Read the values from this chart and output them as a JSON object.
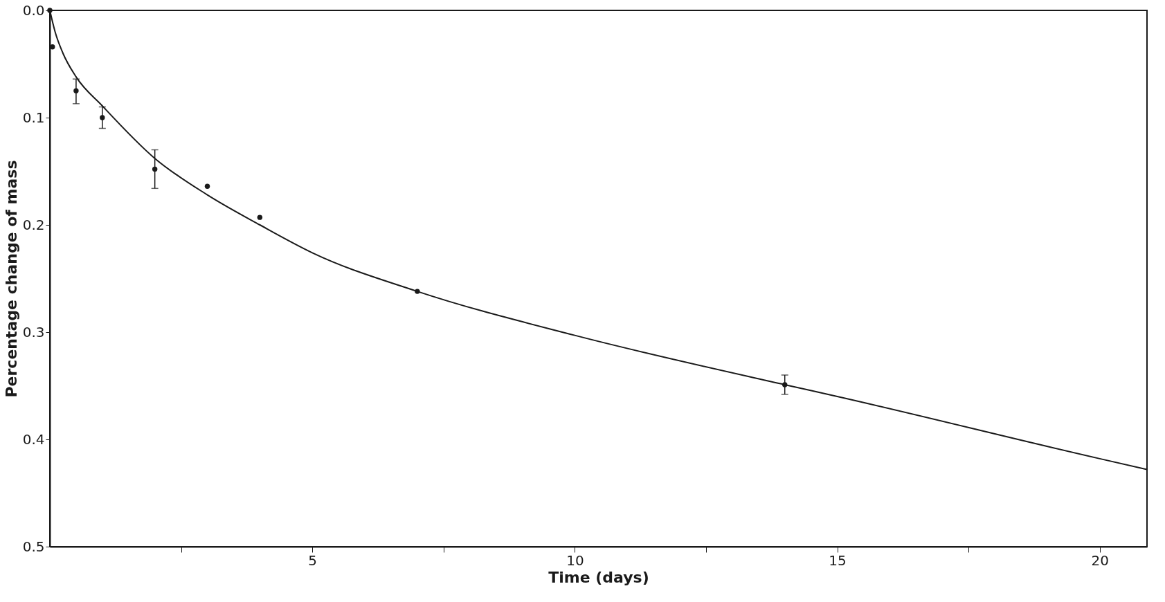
{
  "chart_data": {
    "type": "scatter",
    "xlabel": "Time  (days)",
    "ylabel": "Percentage  change  of  mass",
    "xlim": [
      0,
      20.9
    ],
    "ylim": [
      0.5,
      0.0
    ],
    "xticks": [
      {
        "value": 2.5,
        "label": null
      },
      5,
      {
        "value": 7.5,
        "label": null
      },
      10,
      {
        "value": 12.5,
        "label": null
      },
      15,
      {
        "value": 17.5,
        "label": null
      },
      20
    ],
    "yticks": [
      {
        "value": 0,
        "label": "0.0"
      },
      0.1,
      0.2,
      0.3,
      0.4,
      0.5
    ],
    "grid": false,
    "series": [
      {
        "color": "#1a1a1a",
        "marker": "circle",
        "x": [
          0,
          0.05,
          0.5,
          1,
          2,
          3,
          4,
          7,
          14
        ],
        "values": [
          0.0,
          0.034,
          0.075,
          0.1,
          0.148,
          0.164,
          0.193,
          0.262,
          0.349
        ],
        "errors": [
          null,
          null,
          [
            0.064,
            0.087
          ],
          [
            0.09,
            0.11
          ],
          [
            0.13,
            0.166
          ],
          null,
          null,
          null,
          [
            0.34,
            0.358
          ]
        ]
      },
      {
        "type": "line",
        "color": "#1a1a1a",
        "marker": "none",
        "line_style": "solid",
        "x": [
          0,
          0.1,
          0.25,
          0.5,
          1,
          2,
          3,
          4,
          5,
          7,
          10,
          14,
          15,
          20,
          20.9
        ],
        "values": [
          0.0,
          0.02,
          0.04,
          0.062,
          0.089,
          0.138,
          0.172,
          0.2,
          0.226,
          0.262,
          0.303,
          0.349,
          0.36,
          0.418,
          0.428
        ]
      }
    ]
  }
}
